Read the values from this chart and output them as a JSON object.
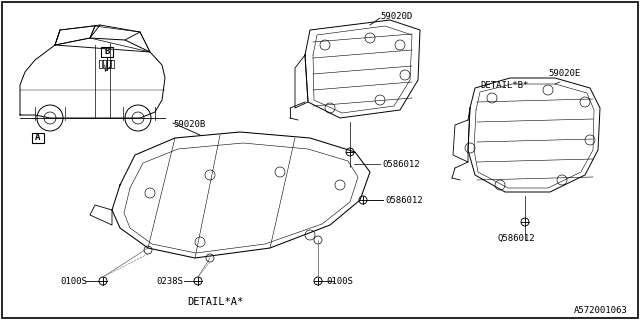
{
  "background_color": "#ffffff",
  "border_color": "#000000",
  "line_color": "#000000",
  "text_color": "#000000",
  "diagram_id": "A572001063",
  "fs": 6.5,
  "fs_detail": 7.5,
  "lw": 0.65,
  "labels": {
    "A": "A",
    "B": "B",
    "59020B": "59020B",
    "59020D": "59020D",
    "59020E": "59020E",
    "0586012": "0586012",
    "Q586012": "Q586012",
    "0100S_L": "0100S",
    "0238S": "0238S",
    "0100S_R": "0100S",
    "DETAIL_A": "DETAIL*A*",
    "DETAIL_B": "DETAIL*B*"
  }
}
